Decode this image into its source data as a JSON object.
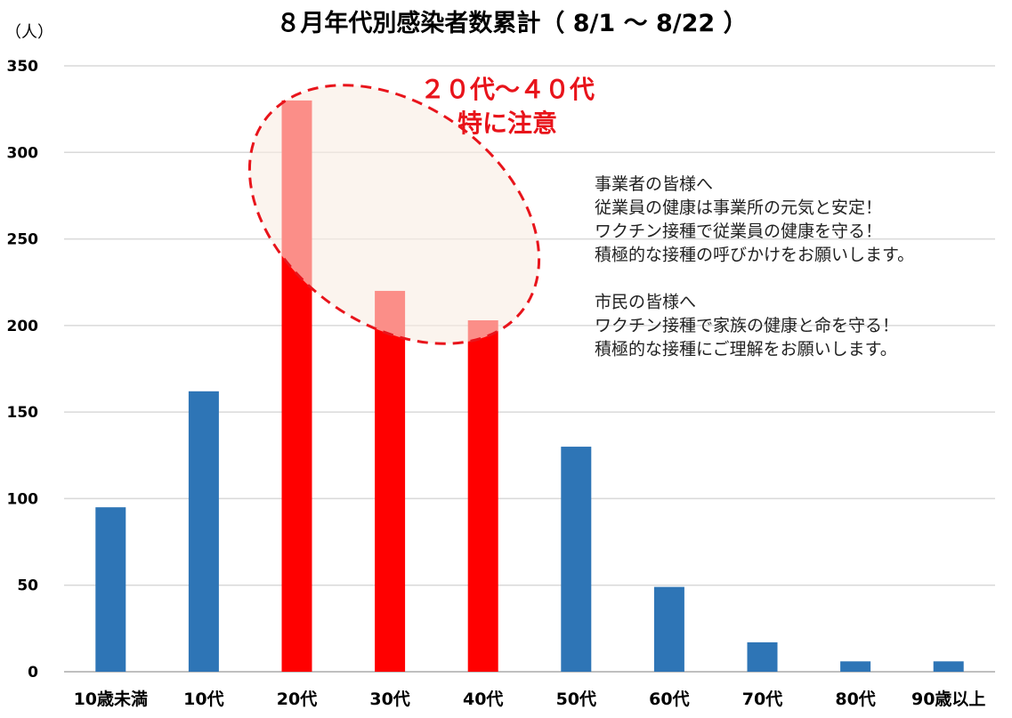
{
  "chart_data": {
    "type": "bar",
    "title": "８月年代別感染者数累計（ 8/1 〜 8/22 ）",
    "ylabel": "（人）",
    "xlabel": "",
    "ylim": [
      0,
      350
    ],
    "yticks": [
      0,
      50,
      100,
      150,
      200,
      250,
      300,
      350
    ],
    "grid": true,
    "categories": [
      "10歳未満",
      "10代",
      "20代",
      "30代",
      "40代",
      "50代",
      "60代",
      "70代",
      "80代",
      "90歳以上"
    ],
    "values": [
      95,
      162,
      330,
      220,
      203,
      130,
      49,
      17,
      6,
      6
    ],
    "colors": {
      "default": "#2e75b6",
      "highlight": "#ff0000",
      "highlight_categories": [
        "20代",
        "30代",
        "40代"
      ]
    },
    "annotations": {
      "emphasis_line1": "２０代〜４０代",
      "emphasis_line2": "特に注意",
      "note_lines": [
        "事業者の皆様へ",
        "従業員の健康は事業所の元気と安定！",
        "ワクチン接種で従業員の健康を守る！",
        "積極的な接種の呼びかけをお願いします。",
        "",
        "市民の皆様へ",
        "ワクチン接種で家族の健康と命を守る！",
        "積極的な接種にご理解をお願いします。"
      ]
    }
  }
}
